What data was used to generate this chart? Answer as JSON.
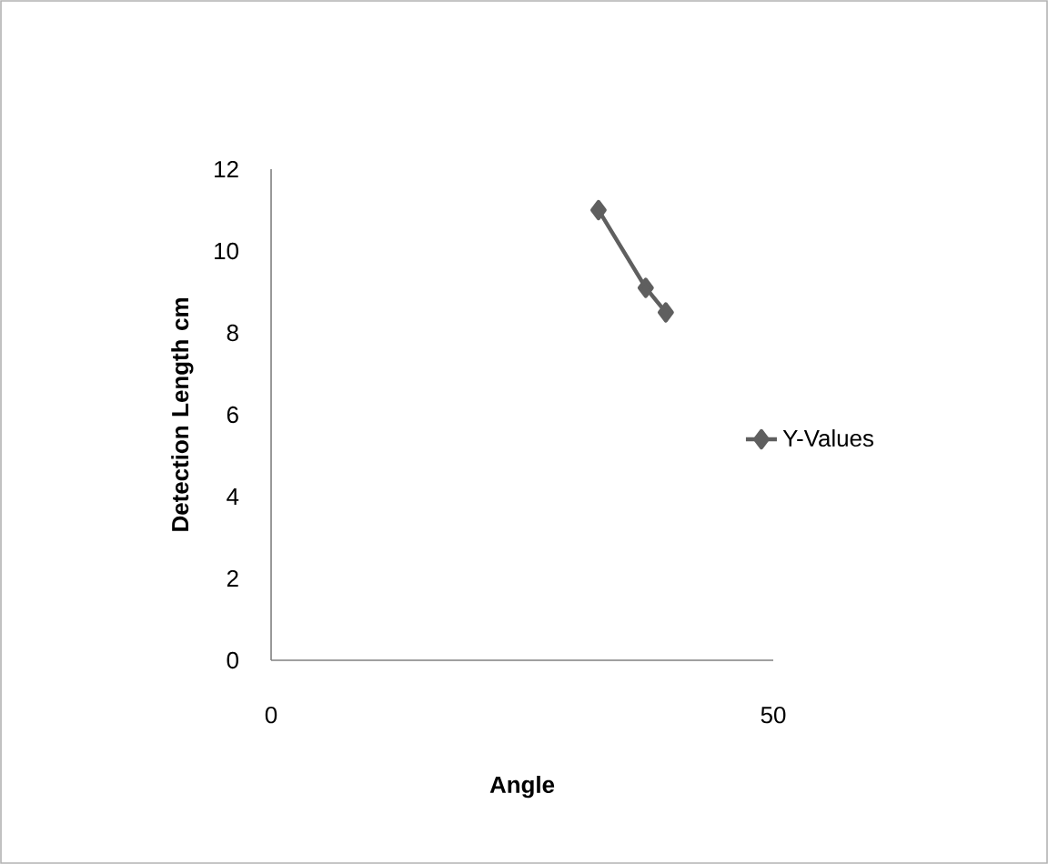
{
  "chart_data": {
    "type": "line",
    "xlabel": "Angle",
    "ylabel": "Detection Length cm",
    "x": [
      32.6,
      37.3,
      39.3
    ],
    "series": [
      {
        "name": "Y-Values",
        "color": "#5f5f5f",
        "values": [
          11.0,
          9.1,
          8.5
        ]
      }
    ],
    "xlim": [
      0,
      50
    ],
    "xticks": [
      0,
      50
    ],
    "ylim": [
      0,
      12
    ],
    "yticks": [
      0,
      2,
      4,
      6,
      8,
      10,
      12
    ],
    "grid": false,
    "legend": "right",
    "marker": "diamond",
    "line_style": "solid"
  }
}
